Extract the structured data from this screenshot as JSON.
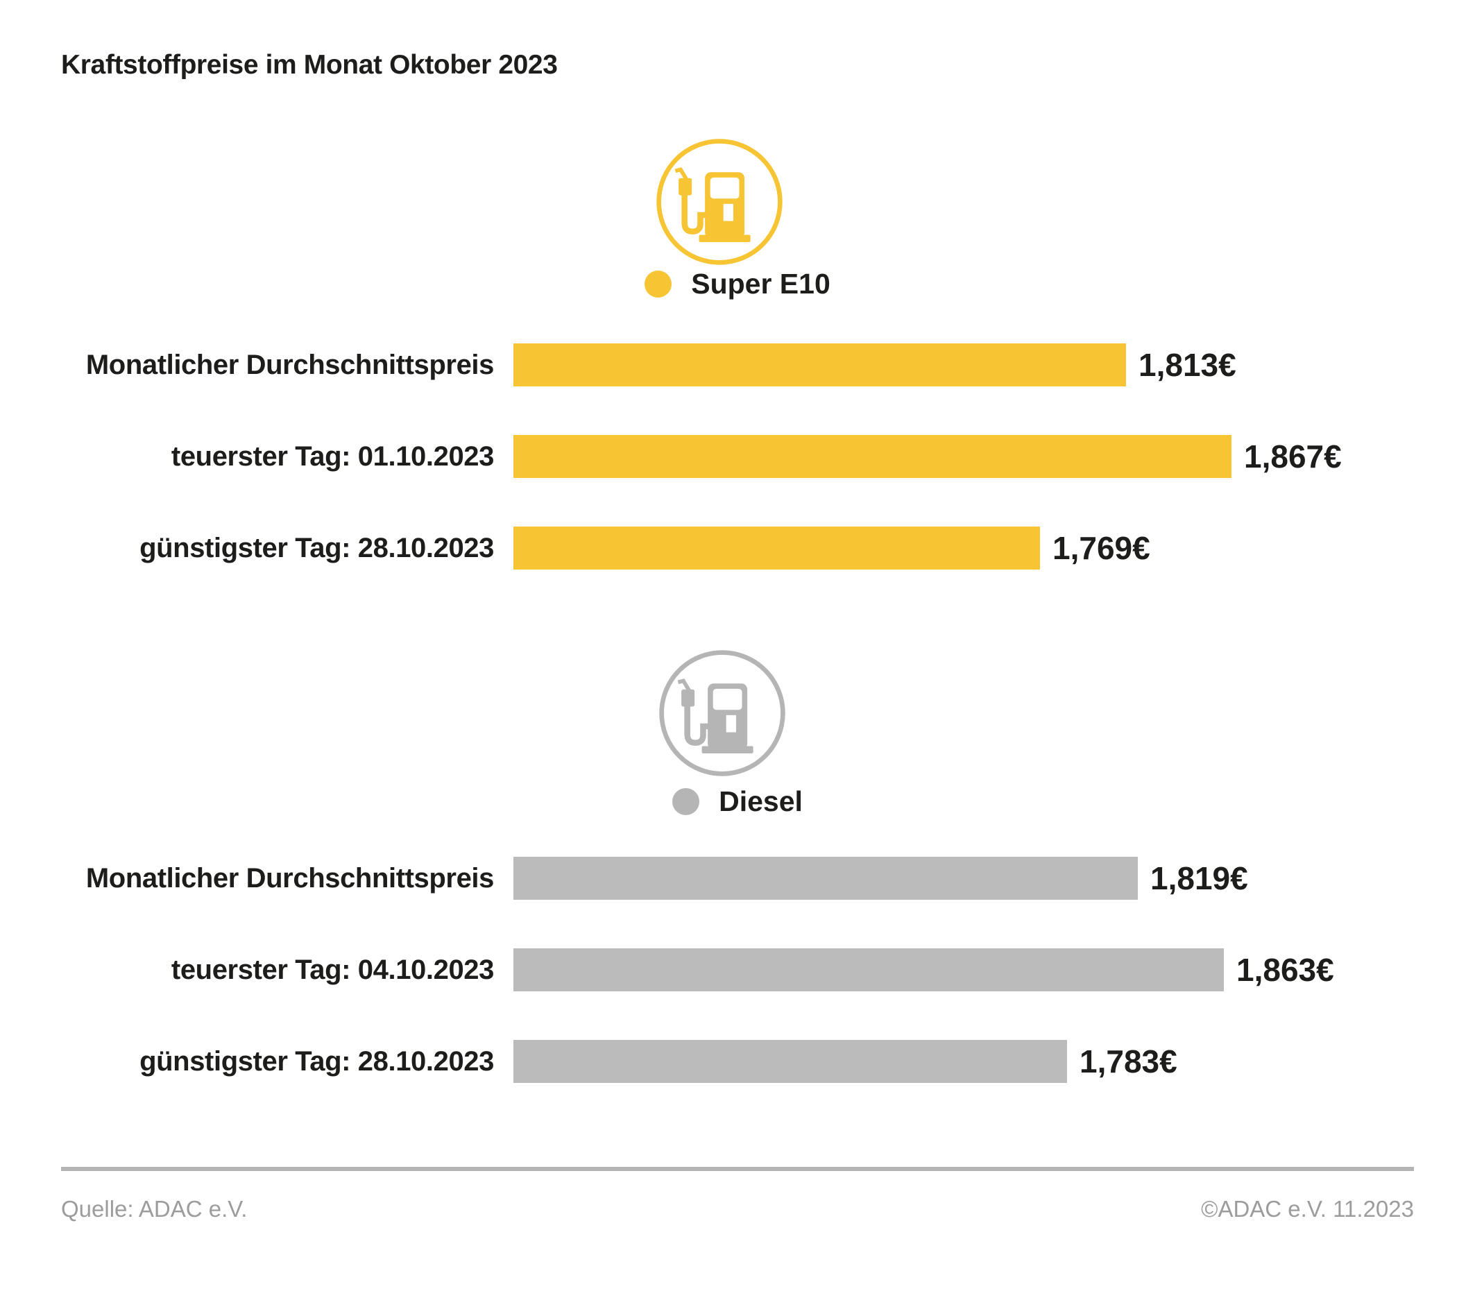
{
  "title": "Kraftstoffpreise im Monat Oktober 2023",
  "colors": {
    "super_e10_yellow": "#F7C433",
    "diesel_gray_bar": "#BBBBBB",
    "diesel_gray_icon": "#B5B5B5",
    "text_dark": "#1D1D1B",
    "footer_gray": "#9C9C9C",
    "divider_gray": "#B4B4B4"
  },
  "chart_data": [
    {
      "type": "bar",
      "orientation": "horizontal",
      "group_title": "Super E10",
      "unit": "EUR pro Liter",
      "color": "#F7C433",
      "xlim": [
        1.5,
        2.0
      ],
      "grid": false,
      "legend_position": "above",
      "categories": [
        "Monatlicher Durchschnittspreis",
        "teuerster Tag: 01.10.2023",
        "günstigster Tag: 28.10.2023"
      ],
      "values": [
        1.813,
        1.867,
        1.769
      ],
      "rows": [
        {
          "label": "Monatlicher Durchschnittspreis",
          "value": 1.813,
          "display_value": "1,813€"
        },
        {
          "label": "teuerster Tag: 01.10.2023",
          "value": 1.867,
          "display_value": "1,867€"
        },
        {
          "label": "günstigster Tag: 28.10.2023",
          "value": 1.769,
          "display_value": "1,769€"
        }
      ]
    },
    {
      "type": "bar",
      "orientation": "horizontal",
      "group_title": "Diesel",
      "unit": "EUR pro Liter",
      "color": "#BBBBBB",
      "xlim": [
        1.5,
        2.0
      ],
      "grid": false,
      "legend_position": "above",
      "categories": [
        "Monatlicher Durchschnittspreis",
        "teuerster Tag: 04.10.2023",
        "günstigster Tag: 28.10.2023"
      ],
      "values": [
        1.819,
        1.863,
        1.783
      ],
      "rows": [
        {
          "label": "Monatlicher Durchschnittspreis",
          "value": 1.819,
          "display_value": "1,819€"
        },
        {
          "label": "teuerster Tag: 04.10.2023",
          "value": 1.863,
          "display_value": "1,863€"
        },
        {
          "label": "günstigster Tag: 28.10.2023",
          "value": 1.783,
          "display_value": "1,783€"
        }
      ]
    }
  ],
  "footer": {
    "source": "Quelle: ADAC e.V.",
    "copyright": "©ADAC e.V. 11.2023"
  }
}
